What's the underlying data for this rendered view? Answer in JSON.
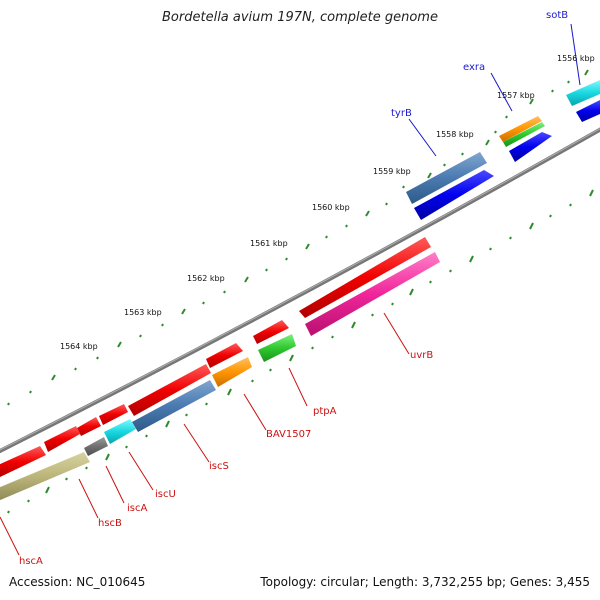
{
  "title": "Bordetella avium 197N, complete genome",
  "footer": {
    "accession": "Accession: NC_010645",
    "summary": "Topology: circular; Length: 3,732,255 bp; Genes: 3,455"
  },
  "kbp_labels": [
    "1556 kbp",
    "1557 kbp",
    "1558 kbp",
    "1559 kbp",
    "1560 kbp",
    "1561 kbp",
    "1562 kbp",
    "1563 kbp",
    "1564 kbp"
  ],
  "gene_labels": {
    "sotB": "sotB",
    "exra": "exra",
    "tyrB": "tyrB",
    "uvrB": "uvrB",
    "ptpA": "ptpA",
    "BAV1507": "BAV1507",
    "iscS": "iscS",
    "iscU": "iscU",
    "iscA": "iscA",
    "hscB": "hscB",
    "hscA": "hscA"
  },
  "colors": {
    "blue_label": "#1a1acc",
    "red_label": "#cc1111",
    "backbone": "#777777",
    "tick": "#2e8b2e"
  }
}
